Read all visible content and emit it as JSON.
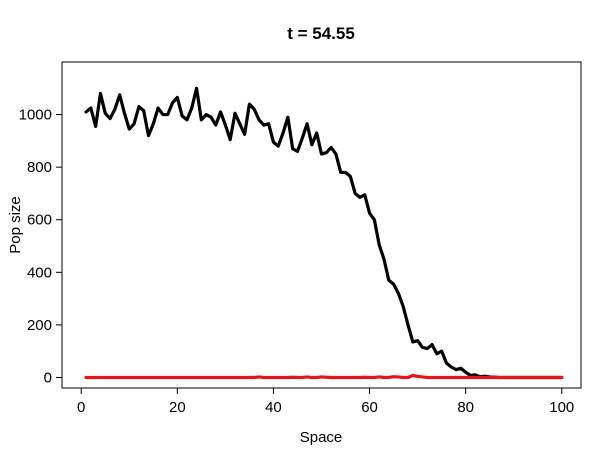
{
  "chart_data": {
    "type": "line",
    "title": "t = 54.55",
    "xlabel": "Space",
    "ylabel": "Pop size",
    "xlim": [
      -4,
      104
    ],
    "ylim": [
      -40,
      1200
    ],
    "xticks": [
      0,
      20,
      40,
      60,
      80,
      100
    ],
    "yticks": [
      0,
      200,
      400,
      600,
      800,
      1000
    ],
    "grid": false,
    "legend": "none",
    "x": [
      1,
      2,
      3,
      4,
      5,
      6,
      7,
      8,
      9,
      10,
      11,
      12,
      13,
      14,
      15,
      16,
      17,
      18,
      19,
      20,
      21,
      22,
      23,
      24,
      25,
      26,
      27,
      28,
      29,
      30,
      31,
      32,
      33,
      34,
      35,
      36,
      37,
      38,
      39,
      40,
      41,
      42,
      43,
      44,
      45,
      46,
      47,
      48,
      49,
      50,
      51,
      52,
      53,
      54,
      55,
      56,
      57,
      58,
      59,
      60,
      61,
      62,
      63,
      64,
      65,
      66,
      67,
      68,
      69,
      70,
      71,
      72,
      73,
      74,
      75,
      76,
      77,
      78,
      79,
      80,
      81,
      82,
      83,
      84,
      85,
      86,
      87,
      88,
      89,
      90,
      91,
      92,
      93,
      94,
      95,
      96,
      97,
      98,
      99,
      100
    ],
    "series": [
      {
        "color": "#000000",
        "values": [
          1010,
          1025,
          955,
          1080,
          1005,
          985,
          1020,
          1075,
          1005,
          945,
          965,
          1030,
          1015,
          920,
          965,
          1025,
          1000,
          1000,
          1045,
          1065,
          995,
          980,
          1025,
          1100,
          980,
          1000,
          990,
          960,
          1010,
          960,
          905,
          1005,
          965,
          925,
          1040,
          1020,
          980,
          960,
          965,
          895,
          880,
          930,
          990,
          870,
          860,
          910,
          965,
          885,
          930,
          850,
          855,
          875,
          850,
          780,
          780,
          765,
          700,
          685,
          695,
          625,
          600,
          505,
          450,
          370,
          355,
          320,
          270,
          200,
          135,
          140,
          115,
          110,
          125,
          90,
          100,
          55,
          40,
          30,
          35,
          20,
          8,
          10,
          3,
          5,
          2,
          1,
          0,
          0,
          0,
          0,
          0,
          0,
          0,
          0,
          0,
          0,
          0,
          0,
          0,
          0
        ]
      },
      {
        "color": "#e8141c",
        "values": [
          0,
          0,
          0,
          0,
          0,
          0,
          0,
          0,
          0,
          0,
          0,
          0,
          0,
          0,
          0,
          0,
          0,
          0,
          0,
          0,
          0,
          0,
          0,
          0,
          0,
          0,
          0,
          0,
          0,
          0,
          0,
          0,
          0,
          0,
          0,
          0,
          2,
          0,
          0,
          0,
          0,
          0,
          0,
          1,
          0,
          0,
          2,
          0,
          0,
          2,
          1,
          0,
          0,
          0,
          0,
          0,
          0,
          0,
          1,
          0,
          0,
          2,
          0,
          0,
          3,
          2,
          0,
          0,
          8,
          4,
          2,
          0,
          0,
          0,
          0,
          0,
          0,
          0,
          0,
          0,
          0,
          0,
          0,
          0,
          0,
          0,
          0,
          0,
          0,
          0,
          0,
          0,
          0,
          0,
          0,
          0,
          0,
          0,
          0,
          0
        ]
      }
    ]
  }
}
